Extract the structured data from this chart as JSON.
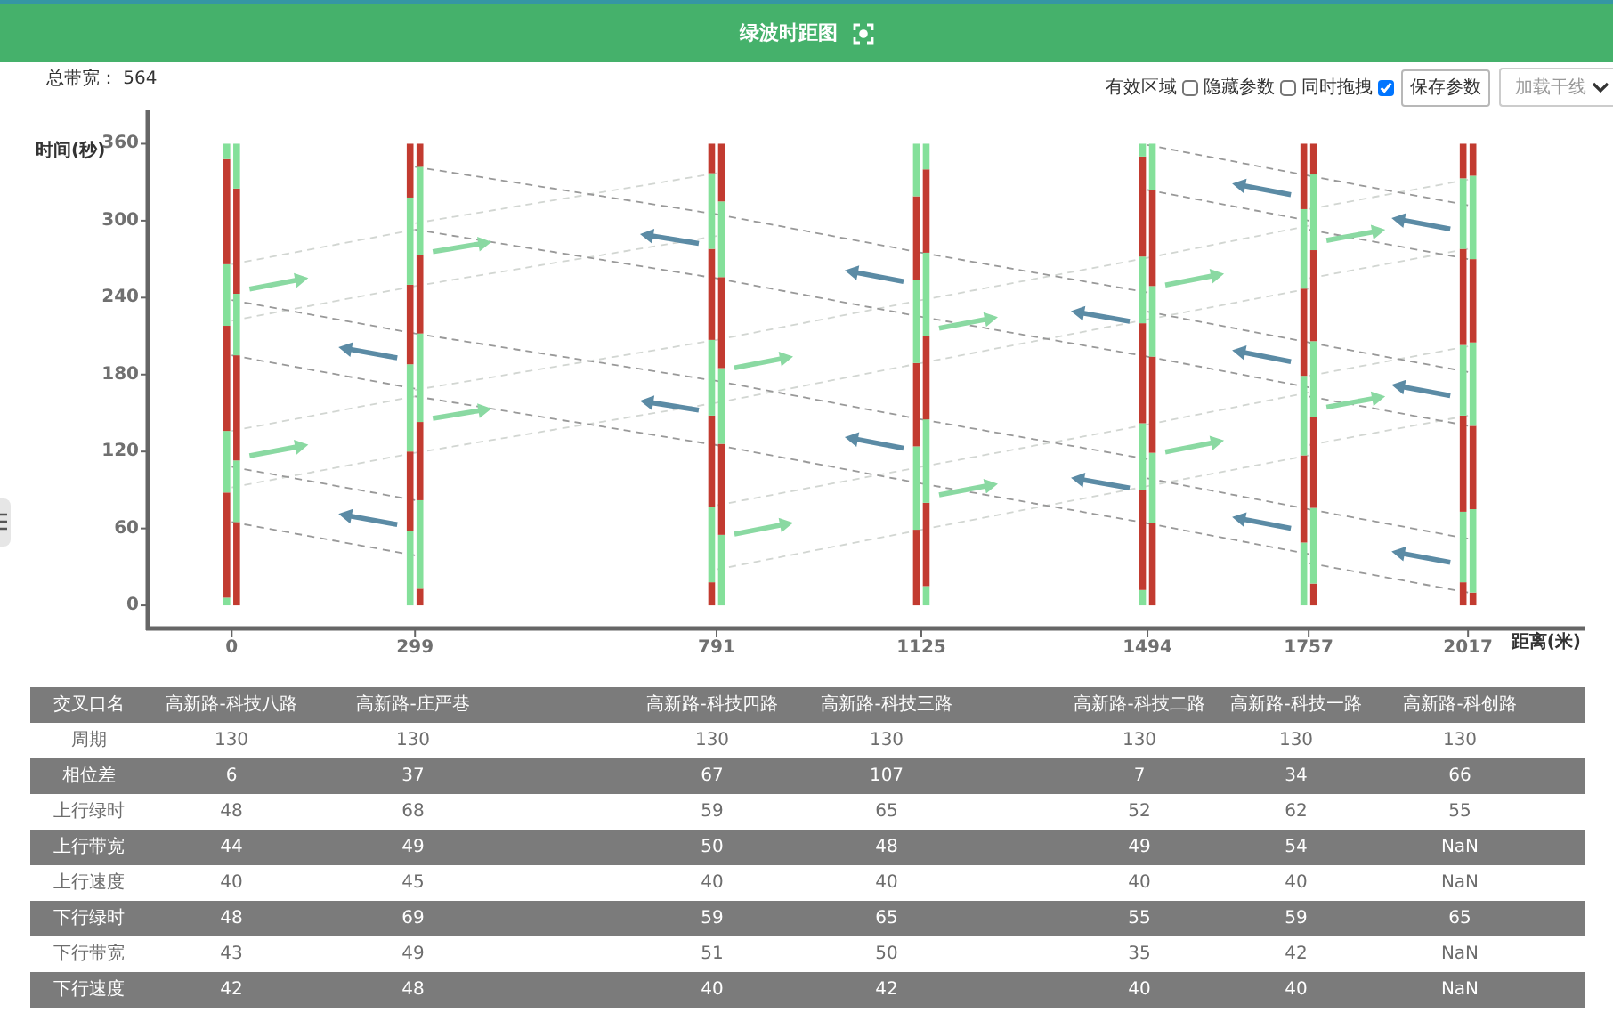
{
  "chart_data": [
    {
      "type": "bar",
      "title": "绿波时距图",
      "xlabel": "距离(米)",
      "ylabel": "时间(秒)",
      "annotations": [
        "总带宽： 564",
        "有效区域",
        "隐藏参数",
        "同时拖拽",
        "保存参数",
        "加载干线"
      ],
      "xlim": [
        -137,
        2207
      ],
      "ylim": [
        -18,
        386
      ],
      "xticks": [
        0,
        299,
        791,
        1125,
        1494,
        1757,
        2017
      ],
      "yticks": [
        0,
        60,
        120,
        180,
        240,
        300,
        360
      ],
      "stacked": true,
      "series": [
        {
          "type": "bar",
          "x": [
            -8,
            8,
            291,
            307,
            783,
            799,
            1117,
            1133,
            1486,
            1502,
            1749,
            1765,
            2009,
            2025
          ],
          "values": [
            6,
            65,
            58,
            13,
            18,
            55,
            59,
            15,
            12,
            64,
            49,
            17,
            18,
            10
          ],
          "colors": [
            "#84e09a",
            "#c23b30",
            "#84e09a",
            "#c23b30",
            "#c23b30",
            "#84e09a",
            "#c23b30",
            "#84e09a",
            "#84e09a",
            "#c23b30",
            "#84e09a",
            "#c23b30",
            "#c23b30",
            "#c23b30"
          ]
        },
        {
          "type": "bar",
          "x": [
            -8,
            8,
            291,
            307,
            783,
            799,
            1117,
            1133,
            1486,
            1502,
            1749,
            1765,
            2009,
            2025
          ],
          "values": [
            82,
            48,
            62,
            69,
            59,
            71,
            65,
            65,
            78,
            55,
            68,
            59,
            55,
            65
          ],
          "colors": [
            "#c23b30",
            "#84e09a",
            "#c23b30",
            "#84e09a",
            "#84e09a",
            "#c23b30",
            "#84e09a",
            "#c23b30",
            "#c23b30",
            "#84e09a",
            "#c23b30",
            "#84e09a",
            "#84e09a",
            "#84e09a"
          ]
        },
        {
          "type": "bar",
          "x": [
            -8,
            8,
            291,
            307,
            783,
            799,
            1117,
            1133,
            1486,
            1502,
            1749,
            1765,
            2009,
            2025
          ],
          "values": [
            48,
            82,
            68,
            61,
            71,
            59,
            65,
            65,
            52,
            75,
            62,
            71,
            75,
            65
          ],
          "colors": [
            "#84e09a",
            "#c23b30",
            "#84e09a",
            "#c23b30",
            "#c23b30",
            "#84e09a",
            "#c23b30",
            "#84e09a",
            "#84e09a",
            "#c23b30",
            "#84e09a",
            "#c23b30",
            "#c23b30",
            "#c23b30"
          ]
        },
        {
          "type": "bar",
          "x": [
            -8,
            8,
            291,
            307,
            783,
            799,
            1117,
            1133,
            1486,
            1502,
            1749,
            1765,
            2009,
            2025
          ],
          "values": [
            82,
            48,
            62,
            69,
            59,
            71,
            65,
            65,
            78,
            55,
            68,
            59,
            55,
            65
          ],
          "colors": [
            "#c23b30",
            "#84e09a",
            "#c23b30",
            "#84e09a",
            "#84e09a",
            "#c23b30",
            "#84e09a",
            "#c23b30",
            "#c23b30",
            "#84e09a",
            "#c23b30",
            "#84e09a",
            "#84e09a",
            "#84e09a"
          ]
        },
        {
          "type": "bar",
          "x": [
            -8,
            8,
            291,
            307,
            783,
            799,
            1117,
            1133,
            1486,
            1502,
            1749,
            1765,
            2009,
            2025
          ],
          "values": [
            48,
            82,
            68,
            61,
            71,
            59,
            65,
            65,
            52,
            75,
            62,
            71,
            75,
            65
          ],
          "colors": [
            "#84e09a",
            "#c23b30",
            "#84e09a",
            "#c23b30",
            "#c23b30",
            "#84e09a",
            "#c23b30",
            "#84e09a",
            "#84e09a",
            "#c23b30",
            "#84e09a",
            "#c23b30",
            "#c23b30",
            "#c23b30"
          ]
        },
        {
          "type": "bar",
          "x": [
            -8,
            8,
            291,
            307,
            783,
            799,
            1117,
            1133,
            1486,
            1502,
            1749,
            1765,
            2009,
            2025
          ],
          "values": [
            82,
            35,
            42,
            69,
            59,
            45,
            41,
            65,
            78,
            36,
            51,
            59,
            55,
            65
          ],
          "colors": [
            "#c23b30",
            "#84e09a",
            "#c23b30",
            "#84e09a",
            "#84e09a",
            "#c23b30",
            "#84e09a",
            "#c23b30",
            "#c23b30",
            "#84e09a",
            "#c23b30",
            "#84e09a",
            "#84e09a",
            "#84e09a"
          ]
        },
        {
          "type": "bar",
          "x": [
            -8,
            8,
            291,
            307,
            783,
            799,
            1117,
            1133,
            1486,
            1502,
            1749,
            1765,
            2009,
            2025
          ],
          "values": [
            12,
            null,
            null,
            18,
            23,
            null,
            null,
            20,
            10,
            null,
            null,
            24,
            27,
            25
          ],
          "colors": [
            "#84e09a",
            null,
            null,
            "#c23b30",
            "#c23b30",
            null,
            null,
            "#84e09a",
            "#84e09a",
            null,
            null,
            "#c23b30",
            "#c23b30",
            "#c23b30"
          ]
        },
        {
          "type": "line",
          "x": [
            0,
            299,
            791,
            1125,
            1494,
            1757
          ],
          "values": [
            92,
            119,
            158,
            189,
            223,
            247
          ],
          "color": "#d2d6d2",
          "line_style": "dashed"
        },
        {
          "type": "line",
          "x": [
            0,
            299
          ],
          "values": [
            136,
            163
          ],
          "color": "#d2d6d2",
          "line_style": "dashed"
        },
        {
          "type": "line",
          "x": [
            299,
            791,
            1125,
            1494,
            1757
          ],
          "values": [
            168,
            207,
            238,
            271,
            296
          ],
          "color": "#d2d6d2",
          "line_style": "dashed"
        },
        {
          "type": "line",
          "x": [
            0,
            299,
            791
          ],
          "values": [
            222,
            249,
            288
          ],
          "color": "#d2d6d2",
          "line_style": "dashed"
        },
        {
          "type": "line",
          "x": [
            0,
            299
          ],
          "values": [
            266,
            293
          ],
          "color": "#d2d6d2",
          "line_style": "dashed"
        },
        {
          "type": "line",
          "x": [
            299,
            791
          ],
          "values": [
            298,
            337
          ],
          "color": "#d2d6d2",
          "line_style": "dashed"
        },
        {
          "type": "line",
          "x": [
            791,
            1125,
            1494,
            1757
          ],
          "values": [
            28,
            59,
            93,
            117
          ],
          "color": "#d2d6d2",
          "line_style": "dashed"
        },
        {
          "type": "line",
          "x": [
            791,
            1125,
            1494,
            1757
          ],
          "values": [
            78,
            108,
            141,
            166
          ],
          "color": "#d2d6d2",
          "line_style": "dashed"
        },
        {
          "type": "line",
          "x": [
            1757,
            2017
          ],
          "values": [
            125,
            148
          ],
          "color": "#d2d6d2",
          "line_style": "dashed"
        },
        {
          "type": "line",
          "x": [
            1757,
            2017
          ],
          "values": [
            179,
            202
          ],
          "color": "#d2d6d2",
          "line_style": "dashed"
        },
        {
          "type": "line",
          "x": [
            1757,
            2017
          ],
          "values": [
            255,
            278
          ],
          "color": "#d2d6d2",
          "line_style": "dashed"
        },
        {
          "type": "line",
          "x": [
            1757,
            2017
          ],
          "values": [
            309,
            332
          ],
          "color": "#d2d6d2",
          "line_style": "dashed"
        },
        {
          "type": "line",
          "x": [
            0,
            299
          ],
          "values": [
            65,
            39
          ],
          "color": "#999999",
          "line_style": "dashed"
        },
        {
          "type": "line",
          "x": [
            0,
            299
          ],
          "values": [
            108,
            82
          ],
          "color": "#999999",
          "line_style": "dashed"
        },
        {
          "type": "line",
          "x": [
            0,
            299
          ],
          "values": [
            195,
            169
          ],
          "color": "#999999",
          "line_style": "dashed"
        },
        {
          "type": "line",
          "x": [
            0,
            299,
            791,
            1125,
            1494
          ],
          "values": [
            238,
            212,
            175,
            145,
            114
          ],
          "color": "#999999",
          "line_style": "dashed"
        },
        {
          "type": "line",
          "x": [
            299,
            791,
            1125,
            1494,
            1757
          ],
          "values": [
            163,
            125,
            95,
            64,
            40
          ],
          "color": "#999999",
          "line_style": "dashed"
        },
        {
          "type": "line",
          "x": [
            299,
            791,
            1125,
            1494,
            1757
          ],
          "values": [
            293,
            255,
            225,
            194,
            170
          ],
          "color": "#999999",
          "line_style": "dashed"
        },
        {
          "type": "line",
          "x": [
            299,
            791,
            1125,
            1494
          ],
          "values": [
            342,
            305,
            275,
            244
          ],
          "color": "#999999",
          "line_style": "dashed"
        },
        {
          "type": "line",
          "x": [
            1494,
            1757,
            2017
          ],
          "values": [
            99,
            75,
            52
          ],
          "color": "#999999",
          "line_style": "dashed"
        },
        {
          "type": "line",
          "x": [
            1494,
            1757,
            2017
          ],
          "values": [
            229,
            205,
            182
          ],
          "color": "#999999",
          "line_style": "dashed"
        },
        {
          "type": "line",
          "x": [
            1494,
            1757
          ],
          "values": [
            324,
            300
          ],
          "color": "#999999",
          "line_style": "dashed"
        },
        {
          "type": "line",
          "x": [
            1494,
            1757,
            2017
          ],
          "values": [
            359,
            335,
            312
          ],
          "color": "#999999",
          "line_style": "dashed"
        },
        {
          "type": "line",
          "x": [
            1757,
            2017
          ],
          "values": [
            33,
            10
          ],
          "color": "#999999",
          "line_style": "dashed"
        },
        {
          "type": "line",
          "x": [
            1757,
            2017
          ],
          "values": [
            163,
            140
          ],
          "color": "#999999",
          "line_style": "dashed"
        },
        {
          "type": "line",
          "x": [
            1757,
            2017
          ],
          "values": [
            293,
            270
          ],
          "color": "#999999",
          "line_style": "dashed"
        }
      ]
    },
    {
      "type": "other",
      "xlabel": "交叉口名",
      "categories": [
        "高新路-科技八路",
        "高新路-庄严巷",
        "高新路-科技四路",
        "高新路-科技三路",
        "高新路-科技二路",
        "高新路-科技一路",
        "高新路-科创路"
      ],
      "y_categories": [
        "周期",
        "相位差",
        "上行绿时",
        "上行带宽",
        "上行速度",
        "下行绿时",
        "下行带宽",
        "下行速度"
      ],
      "cell_labels": [
        [
          "130",
          "130",
          "130",
          "130",
          "130",
          "130",
          "130"
        ],
        [
          "6",
          "37",
          "67",
          "107",
          "7",
          "34",
          "66"
        ],
        [
          "48",
          "68",
          "59",
          "65",
          "52",
          "62",
          "55"
        ],
        [
          "44",
          "49",
          "50",
          "48",
          "49",
          "54",
          "NaN"
        ],
        [
          "40",
          "45",
          "40",
          "40",
          "40",
          "40",
          "NaN"
        ],
        [
          "48",
          "69",
          "59",
          "65",
          "55",
          "59",
          "65"
        ],
        [
          "43",
          "49",
          "51",
          "50",
          "35",
          "42",
          "NaN"
        ],
        [
          "42",
          "48",
          "40",
          "42",
          "40",
          "40",
          "NaN"
        ]
      ]
    }
  ]
}
